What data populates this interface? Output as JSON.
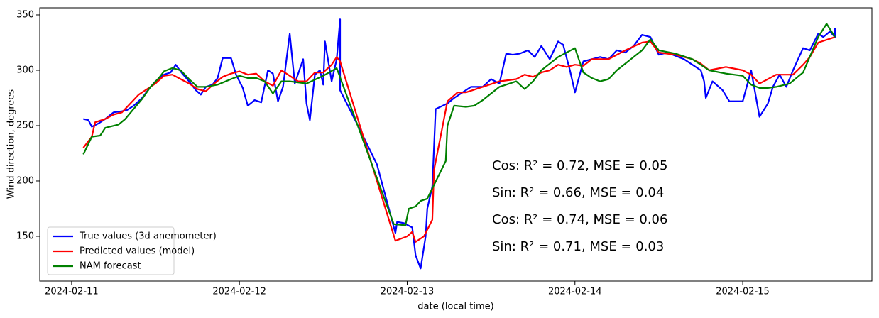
{
  "chart_data": {
    "type": "line",
    "xlabel": "date (local time)",
    "ylabel": "Wind direction, degrees",
    "xlim": [
      -0.19,
      4.77
    ],
    "xticks": [
      {
        "value": 0,
        "label": "2024-02-11"
      },
      {
        "value": 1,
        "label": "2024-02-12"
      },
      {
        "value": 2,
        "label": "2024-02-13"
      },
      {
        "value": 3,
        "label": "2024-02-14"
      },
      {
        "value": 4,
        "label": "2024-02-15"
      }
    ],
    "ylim": [
      109.6,
      356.4
    ],
    "yticks": [
      150,
      200,
      250,
      300,
      350
    ],
    "grid": false,
    "legend": "lower left",
    "series": [
      {
        "name": "True values (3d anemometer)",
        "color": "#0000ff",
        "x": [
          0.07,
          0.1,
          0.12,
          0.16,
          0.2,
          0.25,
          0.3,
          0.33,
          0.37,
          0.42,
          0.46,
          0.5,
          0.55,
          0.59,
          0.62,
          0.66,
          0.7,
          0.74,
          0.77,
          0.8,
          0.84,
          0.87,
          0.9,
          0.95,
          0.98,
          1.02,
          1.05,
          1.09,
          1.13,
          1.17,
          1.2,
          1.23,
          1.26,
          1.3,
          1.33,
          1.38,
          1.4,
          1.42,
          1.45,
          1.48,
          1.5,
          1.51,
          1.55,
          1.58,
          1.6,
          1.6,
          1.7,
          1.82,
          1.93,
          1.94,
          1.98,
          2.03,
          2.05,
          2.08,
          2.11,
          2.12,
          2.15,
          2.17,
          2.24,
          2.28,
          2.33,
          2.38,
          2.45,
          2.5,
          2.55,
          2.59,
          2.63,
          2.67,
          2.72,
          2.76,
          2.8,
          2.85,
          2.9,
          2.93,
          2.97,
          3.0,
          3.05,
          3.1,
          3.15,
          3.2,
          3.25,
          3.3,
          3.35,
          3.4,
          3.45,
          3.5,
          3.55,
          3.6,
          3.65,
          3.7,
          3.75,
          3.77,
          3.78,
          3.82,
          3.88,
          3.92,
          3.97,
          4.0,
          4.05,
          4.1,
          4.15,
          4.18,
          4.22,
          4.26,
          4.3,
          4.36,
          4.4,
          4.45,
          4.48,
          4.52,
          4.55,
          4.55
        ],
        "values": [
          256,
          255,
          249,
          252,
          256,
          262,
          263,
          264,
          268,
          275,
          283,
          290,
          296,
          298,
          305,
          297,
          290,
          282,
          278,
          285,
          287,
          293,
          311,
          311,
          296,
          284,
          268,
          273,
          271,
          300,
          297,
          272,
          285,
          333,
          288,
          310,
          270,
          255,
          296,
          300,
          287,
          326,
          290,
          310,
          346,
          282,
          252,
          215,
          153,
          163,
          162,
          158,
          133,
          121,
          150,
          175,
          195,
          265,
          270,
          275,
          280,
          285,
          285,
          292,
          288,
          315,
          314,
          315,
          318,
          312,
          322,
          310,
          326,
          323,
          300,
          280,
          308,
          310,
          312,
          310,
          318,
          316,
          322,
          332,
          330,
          314,
          316,
          313,
          310,
          305,
          300,
          290,
          275,
          290,
          282,
          272,
          272,
          272,
          300,
          258,
          270,
          285,
          296,
          285,
          300,
          320,
          318,
          333,
          330,
          335,
          330,
          338
        ]
      },
      {
        "name": "Predicted values (model)",
        "color": "#ff0000",
        "x": [
          0.07,
          0.12,
          0.14,
          0.2,
          0.25,
          0.3,
          0.35,
          0.4,
          0.45,
          0.5,
          0.55,
          0.6,
          0.65,
          0.7,
          0.75,
          0.8,
          0.85,
          0.9,
          0.95,
          1.0,
          1.05,
          1.1,
          1.15,
          1.2,
          1.25,
          1.3,
          1.35,
          1.4,
          1.45,
          1.5,
          1.55,
          1.58,
          1.6,
          1.93,
          2.0,
          2.03,
          2.05,
          2.1,
          2.15,
          2.16,
          2.24,
          2.3,
          2.35,
          2.45,
          2.55,
          2.65,
          2.7,
          2.75,
          2.8,
          2.85,
          2.9,
          2.95,
          3.0,
          3.05,
          3.1,
          3.2,
          3.3,
          3.4,
          3.45,
          3.5,
          3.6,
          3.7,
          3.75,
          3.8,
          3.9,
          4.0,
          4.05,
          4.1,
          4.15,
          4.2,
          4.3,
          4.36,
          4.4,
          4.45,
          4.55
        ],
        "values": [
          230,
          240,
          253,
          256,
          260,
          262,
          270,
          278,
          283,
          288,
          295,
          296,
          292,
          288,
          283,
          281,
          288,
          294,
          297,
          299,
          296,
          297,
          290,
          286,
          300,
          295,
          290,
          290,
          298,
          298,
          305,
          312,
          308,
          146,
          150,
          154,
          145,
          150,
          165,
          210,
          272,
          280,
          280,
          285,
          290,
          292,
          296,
          294,
          298,
          300,
          305,
          303,
          305,
          304,
          310,
          310,
          318,
          325,
          326,
          316,
          314,
          310,
          306,
          300,
          303,
          300,
          296,
          288,
          292,
          296,
          296,
          305,
          312,
          325,
          330
        ]
      },
      {
        "name": "NAM forecast",
        "color": "#008000",
        "x": [
          0.07,
          0.12,
          0.17,
          0.2,
          0.28,
          0.32,
          0.38,
          0.42,
          0.47,
          0.52,
          0.55,
          0.6,
          0.65,
          0.7,
          0.75,
          0.8,
          0.87,
          0.95,
          1.0,
          1.05,
          1.1,
          1.15,
          1.2,
          1.25,
          1.3,
          1.4,
          1.5,
          1.58,
          1.92,
          1.99,
          2.01,
          2.05,
          2.08,
          2.12,
          2.23,
          2.24,
          2.28,
          2.35,
          2.4,
          2.45,
          2.55,
          2.65,
          2.7,
          2.75,
          2.8,
          2.9,
          3.0,
          3.05,
          3.1,
          3.15,
          3.2,
          3.25,
          3.3,
          3.4,
          3.45,
          3.5,
          3.6,
          3.7,
          3.75,
          3.8,
          3.9,
          4.0,
          4.05,
          4.1,
          4.15,
          4.2,
          4.28,
          4.36,
          4.45,
          4.5,
          4.55
        ],
        "values": [
          224,
          240,
          241,
          248,
          251,
          256,
          267,
          274,
          285,
          293,
          299,
          302,
          300,
          292,
          285,
          285,
          287,
          292,
          295,
          293,
          293,
          290,
          279,
          290,
          290,
          288,
          295,
          302,
          161,
          160,
          175,
          177,
          182,
          184,
          218,
          250,
          268,
          267,
          268,
          273,
          285,
          290,
          283,
          290,
          300,
          312,
          320,
          298,
          293,
          290,
          292,
          300,
          306,
          318,
          328,
          318,
          315,
          310,
          305,
          300,
          297,
          295,
          287,
          284,
          284,
          285,
          288,
          298,
          330,
          342,
          330
        ]
      }
    ],
    "annotations": [
      {
        "text": "Cos: R² = 0.72, MSE = 0.05",
        "color": "#ff0000"
      },
      {
        "text": "Sin: R² = 0.66, MSE = 0.04",
        "color": "#ff0000"
      },
      {
        "text": "Cos: R² = 0.74, MSE = 0.06",
        "color": "#008000"
      },
      {
        "text": "Sin: R² = 0.71, MSE = 0.03",
        "color": "#008000"
      }
    ]
  }
}
